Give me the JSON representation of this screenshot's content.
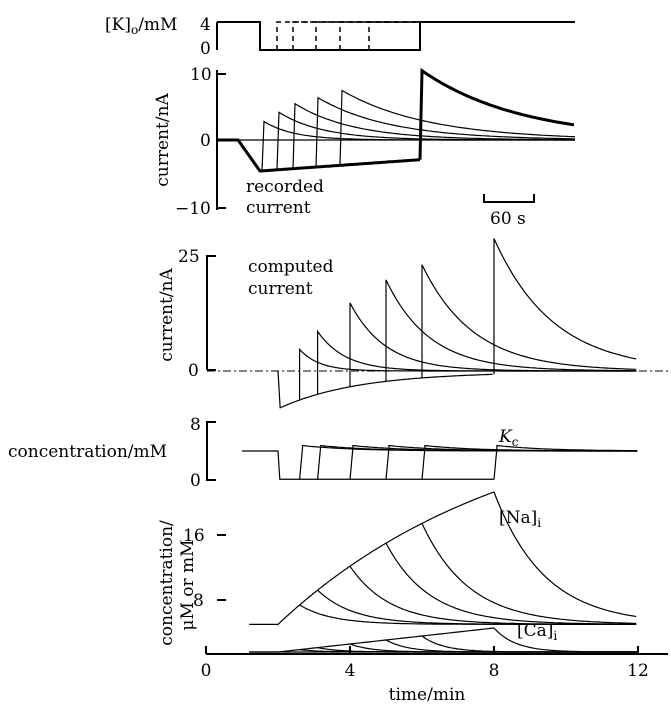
{
  "labels": {
    "k_axis": "[K]",
    "k_axis_sub": "o",
    "k_axis_unit": "/mM",
    "recorded_ylabel": "current/nA",
    "recorded_note_line1": "recorded",
    "recorded_note_line2": "current",
    "scalebar": "60 s",
    "computed_ylabel": "current/nA",
    "computed_note_line1": "computed",
    "computed_note_line2": "current",
    "kc_ylabel": "concentration/mM",
    "kc_trace": "K",
    "kc_trace_sub": "c",
    "conc_ylabel_line1": "concentration/",
    "conc_ylabel_line2": "μM or mM",
    "na_trace": "[Na]",
    "na_sub": "i",
    "ca_trace": "[Ca]",
    "ca_sub": "i",
    "xlabel": "time/min"
  },
  "chart_data": [
    {
      "panel": "protocol",
      "type": "line",
      "ylabel": "[K]o/mM",
      "yticks": [
        "4",
        "0"
      ],
      "baseline": 4,
      "removed": 0,
      "description_of_steps": "K removed at ~1.7 min (recorded time base) for increasing durations; ends at 4.2, 4.6, 5.2, 5.9, 6.7 and 8.6 equivalent"
    },
    {
      "panel": "recorded current",
      "type": "line",
      "ylabel": "current/nA",
      "yticks": [
        -10,
        0,
        10
      ],
      "ylim": [
        -10,
        10
      ],
      "scalebar": "60 s",
      "peaks_nA": [
        2.8,
        4.2,
        5.5,
        6.4,
        7.5,
        10.5
      ],
      "min_nA": -4.7
    },
    {
      "panel": "computed current",
      "type": "line",
      "ylabel": "current/nA",
      "yticks": [
        0,
        25
      ],
      "ylim": [
        -8,
        27
      ],
      "removal_start_min": 2.0,
      "readmission_min": [
        2.6,
        3.1,
        4.0,
        5.0,
        6.0,
        8.0
      ],
      "peaks_nA": [
        4.7,
        8.6,
        14.8,
        19.8,
        23.1,
        28.8
      ],
      "min_nA": -8.0,
      "end_nA": -0.2
    },
    {
      "panel": "Kc",
      "type": "line",
      "ylabel": "concentration/mM",
      "yticks": [
        0,
        4,
        8
      ],
      "ylim": [
        0,
        8
      ],
      "baseline_mM": 4,
      "trace": "Kc",
      "readmission_min": [
        2.6,
        3.1,
        4.0,
        5.0,
        6.0,
        8.0
      ]
    },
    {
      "panel": "Na/Ca",
      "type": "line",
      "ylabel": "concentration/ μM or mM",
      "yticks": [
        8,
        16
      ],
      "ylim": [
        4,
        22
      ],
      "xticks": [
        0,
        4,
        8,
        12
      ],
      "xlabel": "time/min",
      "na_baseline": 5.0,
      "na_peaks": [
        7.4,
        9.2,
        12.1,
        14.8,
        17.0,
        21.3
      ],
      "ca_peak": 2.0,
      "readmission_min": [
        2.6,
        3.1,
        4.0,
        5.0,
        6.0,
        8.0
      ]
    }
  ]
}
